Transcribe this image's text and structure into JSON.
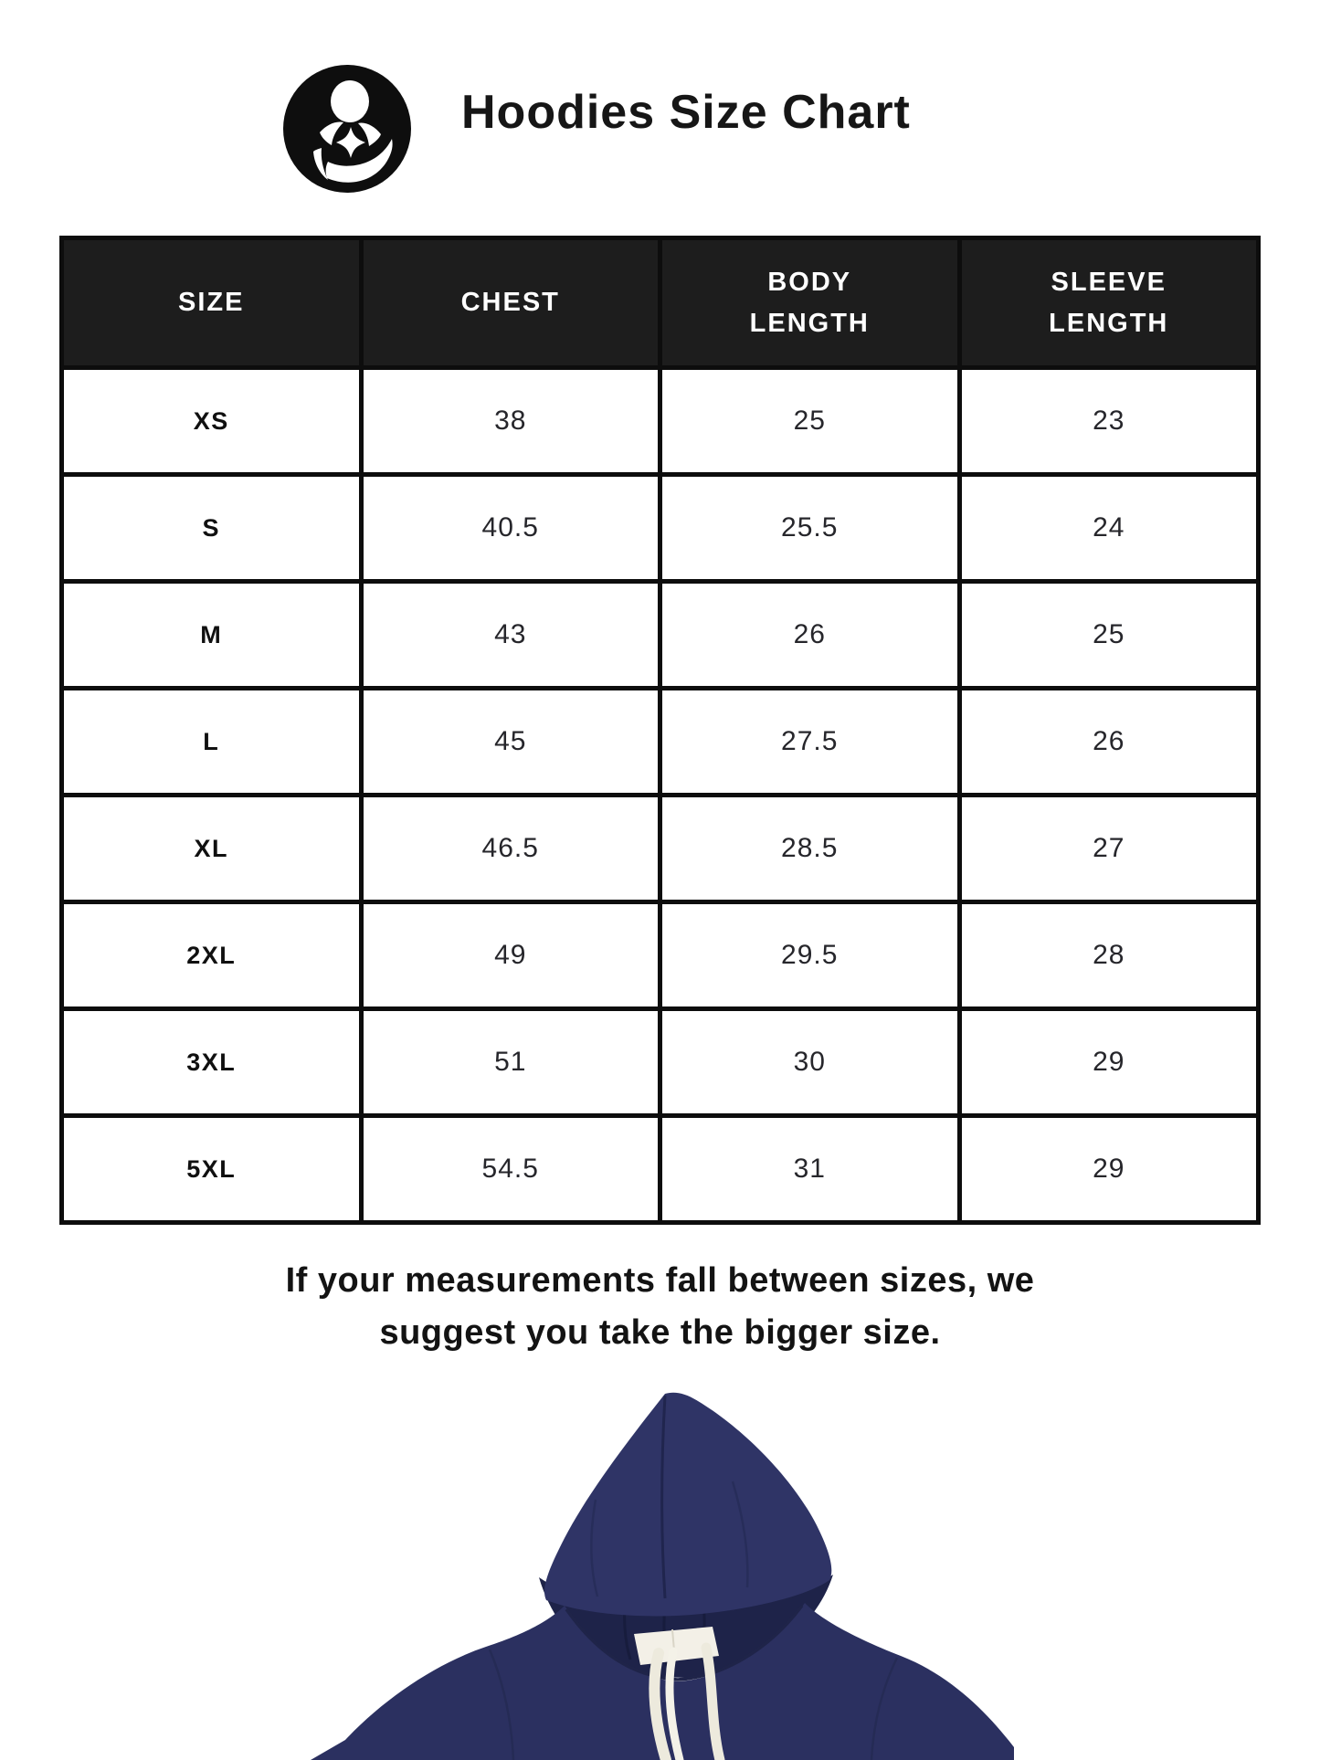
{
  "header": {
    "title": "Hoodies Size Chart",
    "logo": "mother-and-child-brand-mark"
  },
  "table": {
    "columns": [
      "SIZE",
      "CHEST",
      "BODY LENGTH",
      "SLEEVE LENGTH"
    ],
    "column_keys": [
      "size",
      "chest",
      "body_length",
      "sleeve_length"
    ],
    "rows": [
      {
        "size": "XS",
        "chest": "38",
        "body_length": "25",
        "sleeve_length": "23"
      },
      {
        "size": "S",
        "chest": "40.5",
        "body_length": "25.5",
        "sleeve_length": "24"
      },
      {
        "size": "M",
        "chest": "43",
        "body_length": "26",
        "sleeve_length": "25"
      },
      {
        "size": "L",
        "chest": "45",
        "body_length": "27.5",
        "sleeve_length": "26"
      },
      {
        "size": "XL",
        "chest": "46.5",
        "body_length": "28.5",
        "sleeve_length": "27"
      },
      {
        "size": "2XL",
        "chest": "49",
        "body_length": "29.5",
        "sleeve_length": "28"
      },
      {
        "size": "3XL",
        "chest": "51",
        "body_length": "30",
        "sleeve_length": "29"
      },
      {
        "size": "5XL",
        "chest": "54.5",
        "body_length": "31",
        "sleeve_length": "29"
      }
    ]
  },
  "note": {
    "line1": "If your measurements fall between sizes, we",
    "line2": "suggest you take the bigger size."
  },
  "colors": {
    "page_bg": "#ffffff",
    "table_header_bg": "#1d1d1d",
    "table_header_text": "#ffffff",
    "table_border": "#0d0d0d",
    "logo_black": "#0e0e0e",
    "hoodie_navy": "#2b3060",
    "hoodie_hood": "#2f3466",
    "hoodie_inner_hood": "#1e2349",
    "drawstring": "#edeadd",
    "collar_tag": "#f3f0e7"
  }
}
